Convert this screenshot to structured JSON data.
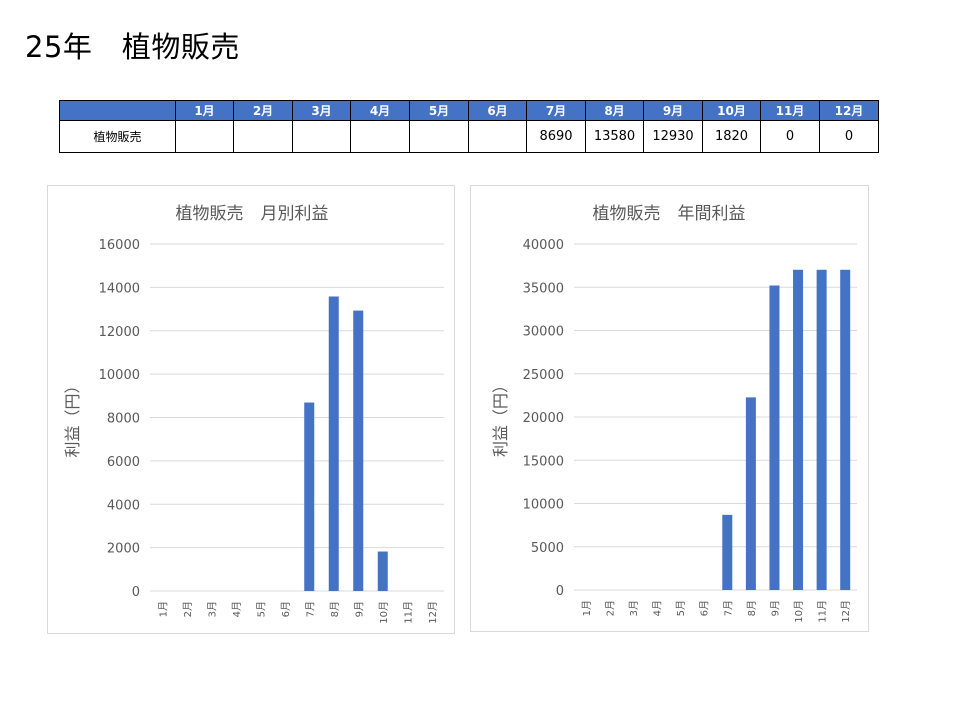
{
  "page": {
    "title": "25年　植物販売"
  },
  "table": {
    "corner": "",
    "months": [
      "1月",
      "2月",
      "3月",
      "4月",
      "5月",
      "6月",
      "7月",
      "8月",
      "9月",
      "10月",
      "11月",
      "12月"
    ],
    "rows": [
      {
        "label": "植物販売",
        "values": [
          "",
          "",
          "",
          "",
          "",
          "",
          "8690",
          "13580",
          "12930",
          "1820",
          "0",
          "0"
        ]
      }
    ]
  },
  "colors": {
    "header_bg": "#4472c4",
    "bar": "#4472c4",
    "grid": "#d9d9d9",
    "axis_text": "#595959"
  },
  "chart_data": [
    {
      "type": "bar",
      "title": "植物販売　月別利益",
      "xlabel": "",
      "ylabel": "利益（円）",
      "categories": [
        "1月",
        "2月",
        "3月",
        "4月",
        "5月",
        "6月",
        "7月",
        "8月",
        "9月",
        "10月",
        "11月",
        "12月"
      ],
      "values": [
        0,
        0,
        0,
        0,
        0,
        0,
        8690,
        13580,
        12930,
        1820,
        0,
        0
      ],
      "ylim": [
        0,
        16000
      ],
      "yticks": [
        0,
        2000,
        4000,
        6000,
        8000,
        10000,
        12000,
        14000,
        16000
      ],
      "grid": true,
      "legend": "none"
    },
    {
      "type": "bar",
      "title": "植物販売　年間利益",
      "xlabel": "",
      "ylabel": "利益（円）",
      "categories": [
        "1月",
        "2月",
        "3月",
        "4月",
        "5月",
        "6月",
        "7月",
        "8月",
        "9月",
        "10月",
        "11月",
        "12月"
      ],
      "values": [
        0,
        0,
        0,
        0,
        0,
        0,
        8690,
        22270,
        35200,
        37020,
        37020,
        37020
      ],
      "ylim": [
        0,
        40000
      ],
      "yticks": [
        0,
        5000,
        10000,
        15000,
        20000,
        25000,
        30000,
        35000,
        40000
      ],
      "grid": true,
      "legend": "none"
    }
  ]
}
